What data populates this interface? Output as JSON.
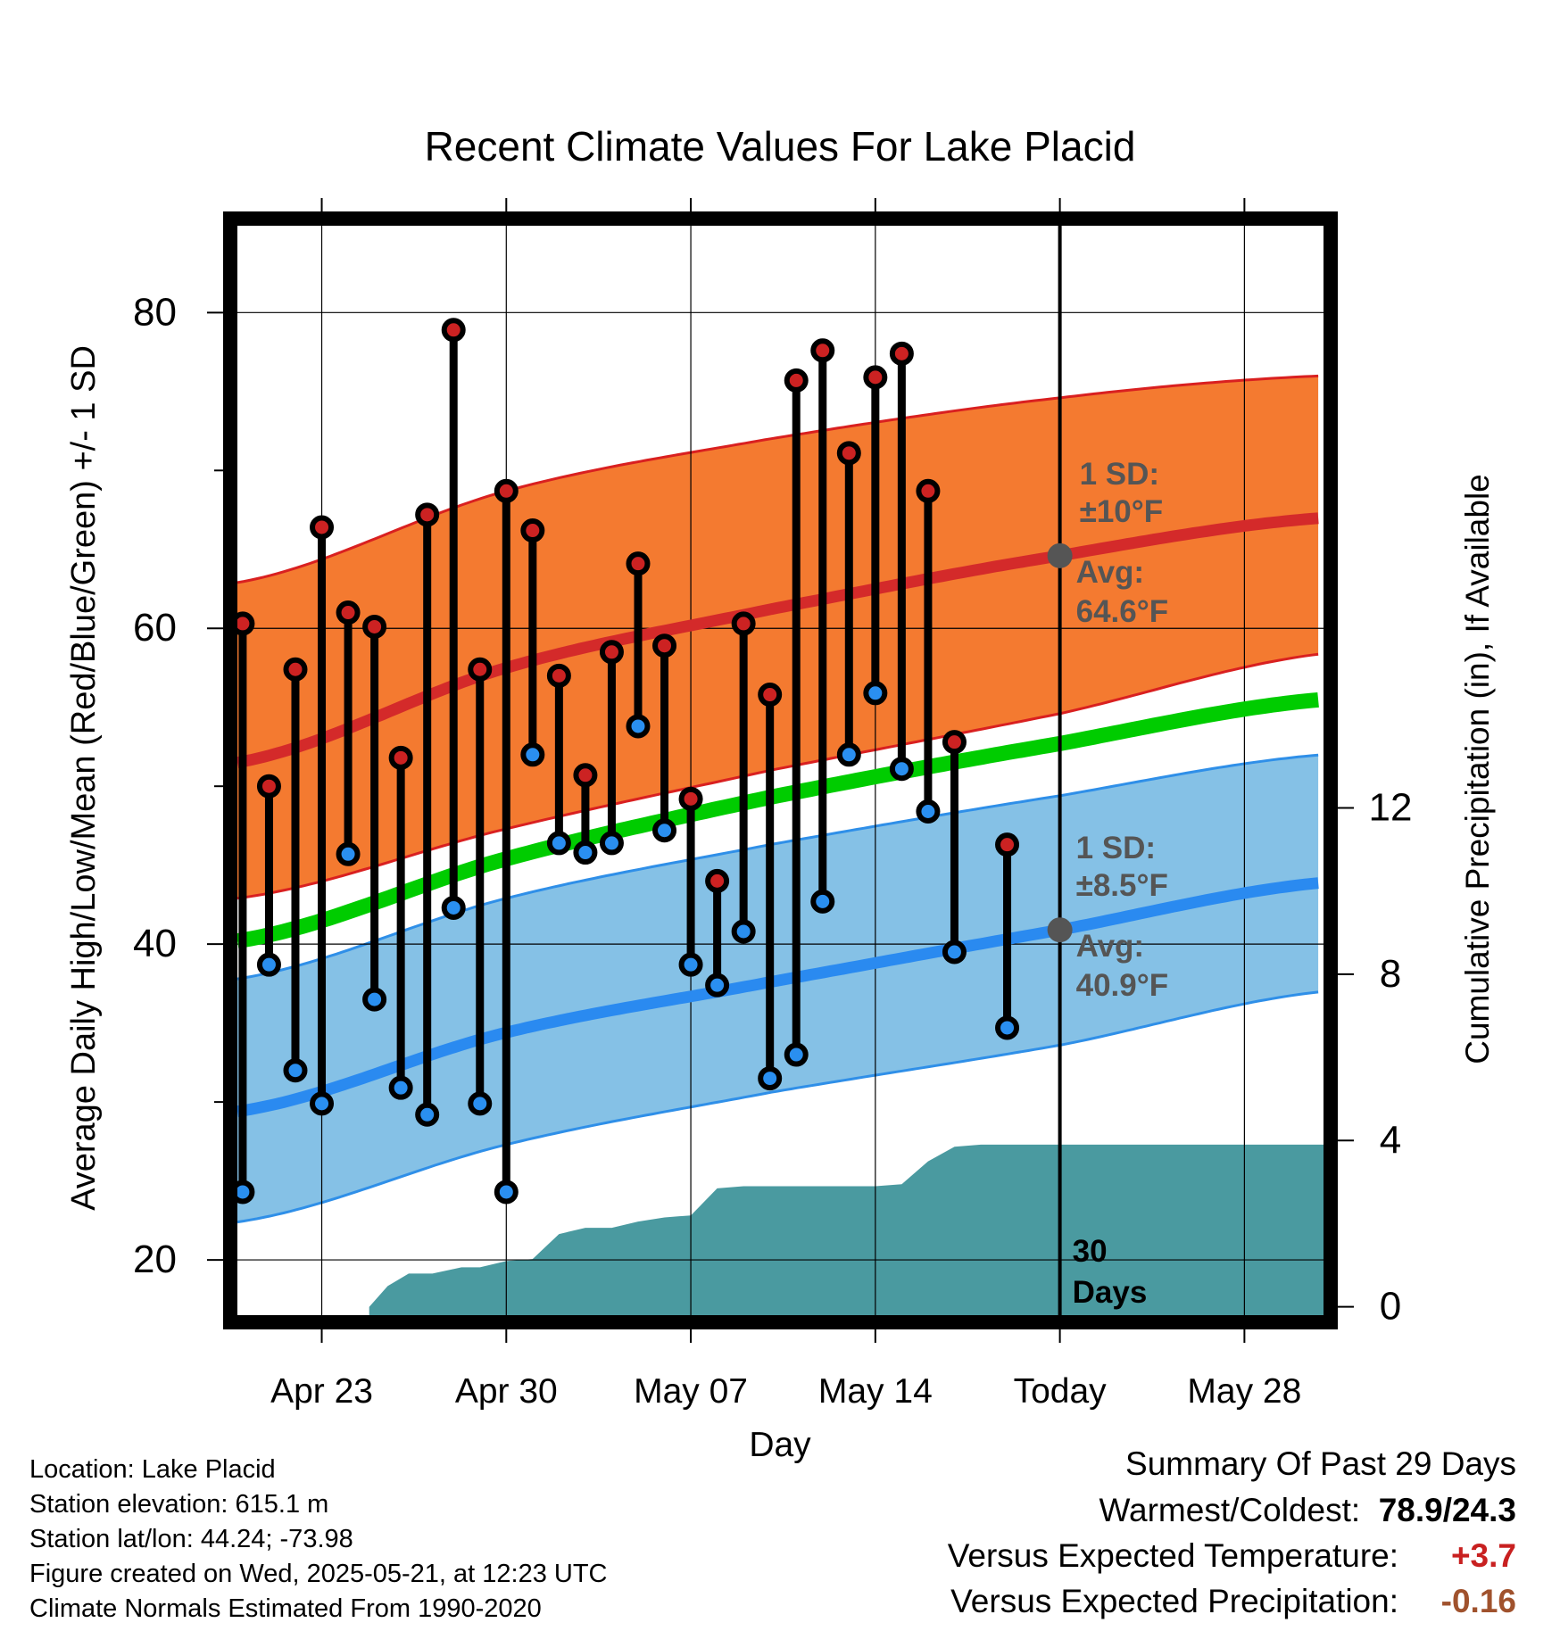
{
  "chart_data": {
    "type": "line",
    "title": "Recent Climate Values For Lake Placid",
    "xlabel": "Day",
    "ylabel": "Average Daily High/Low/Mean (Red/Blue/Green) +/- 1 SD",
    "y2label": "Cumulative Precipitation (in), If Available",
    "ylim": [
      16.5,
      85.5
    ],
    "y2lim": [
      -0.2,
      26
    ],
    "y_ticks": [
      "20",
      "40",
      "60",
      "80"
    ],
    "y2_ticks": [
      "0",
      "4",
      "8",
      "12"
    ],
    "x_ticks": [
      {
        "day": 23,
        "label": "Apr 23"
      },
      {
        "day": 30,
        "label": "Apr 30"
      },
      {
        "day": 37,
        "label": "May 07"
      },
      {
        "day": 44,
        "label": "May 14"
      },
      {
        "day": 51,
        "label": "Today"
      },
      {
        "day": 58,
        "label": "May 28"
      }
    ],
    "xlim": [
      19.8,
      61.0
    ],
    "grid": true,
    "today_day": 51,
    "normals": {
      "days": [
        19.8,
        30,
        40,
        51,
        61
      ],
      "high_mean": [
        51.5,
        57.5,
        61.2,
        64.6,
        67.0
      ],
      "high_upper": [
        62.9,
        68.7,
        72.0,
        74.6,
        76.0
      ],
      "high_lower": [
        42.9,
        47.3,
        51.0,
        54.6,
        58.4
      ],
      "daily_mean": [
        40.2,
        45.4,
        49.3,
        52.7,
        55.5
      ],
      "low_mean": [
        29.4,
        34.4,
        37.6,
        40.9,
        43.9
      ],
      "low_upper": [
        37.8,
        42.9,
        46.3,
        49.4,
        52.0
      ],
      "low_lower": [
        22.4,
        27.3,
        30.6,
        33.6,
        37.0
      ]
    },
    "observations": [
      {
        "day": 20,
        "high": 60.3,
        "low": 24.3
      },
      {
        "day": 21,
        "high": 50.0,
        "low": 38.7
      },
      {
        "day": 22,
        "high": 57.4,
        "low": 32.0
      },
      {
        "day": 23,
        "high": 66.4,
        "low": 29.9
      },
      {
        "day": 24,
        "high": 61.0,
        "low": 45.7
      },
      {
        "day": 25,
        "high": 60.1,
        "low": 36.5
      },
      {
        "day": 26,
        "high": 51.8,
        "low": 30.9
      },
      {
        "day": 27,
        "high": 67.2,
        "low": 29.2
      },
      {
        "day": 28,
        "high": 78.9,
        "low": 42.3
      },
      {
        "day": 29,
        "high": 57.4,
        "low": 29.9
      },
      {
        "day": 30,
        "high": 68.7,
        "low": 24.3
      },
      {
        "day": 31,
        "high": 66.2,
        "low": 52.0
      },
      {
        "day": 32,
        "high": 57.0,
        "low": 46.4
      },
      {
        "day": 33,
        "high": 50.7,
        "low": 45.8
      },
      {
        "day": 34,
        "high": 58.5,
        "low": 46.4
      },
      {
        "day": 35,
        "high": 64.1,
        "low": 53.8
      },
      {
        "day": 36,
        "high": 58.9,
        "low": 47.2
      },
      {
        "day": 37,
        "high": 49.2,
        "low": 38.7
      },
      {
        "day": 38,
        "high": 44.0,
        "low": 37.4
      },
      {
        "day": 39,
        "high": 60.3,
        "low": 40.8
      },
      {
        "day": 40,
        "high": 55.8,
        "low": 31.5
      },
      {
        "day": 41,
        "high": 75.7,
        "low": 33.0
      },
      {
        "day": 42,
        "high": 77.6,
        "low": 42.7
      },
      {
        "day": 43,
        "high": 71.1,
        "low": 52.0
      },
      {
        "day": 44,
        "high": 75.9,
        "low": 55.9
      },
      {
        "day": 45,
        "high": 77.4,
        "low": 51.1
      },
      {
        "day": 46,
        "high": 68.7,
        "low": 48.4
      },
      {
        "day": 47,
        "high": 52.8,
        "low": 39.5
      },
      {
        "day": 49,
        "high": 46.3,
        "low": 34.7
      }
    ],
    "precipitation_cumulative": {
      "days": [
        24.8,
        25.5,
        26.3,
        27.2,
        28.3,
        29.0,
        30.0,
        31.0,
        32.0,
        33.0,
        34.0,
        35.0,
        36.0,
        37.0,
        38.0,
        39.0,
        40.0,
        41.0,
        42.0,
        43.0,
        44.0,
        45.0,
        46.0,
        47.0,
        48.0,
        51.0,
        61.0
      ],
      "values": [
        0.0,
        0.5,
        0.8,
        0.8,
        0.95,
        0.95,
        1.1,
        1.15,
        1.75,
        1.9,
        1.9,
        2.05,
        2.15,
        2.2,
        2.85,
        2.9,
        2.9,
        2.9,
        2.9,
        2.9,
        2.9,
        2.95,
        3.5,
        3.85,
        3.9,
        3.9,
        3.9
      ]
    },
    "annotations": {
      "high_sd_label": "1 SD:",
      "high_sd_value": "±10°F",
      "high_avg_label": "Avg:",
      "high_avg_value": "64.6°F",
      "high_avg": 64.6,
      "low_sd_label": "1 SD:",
      "low_sd_value": "±8.5°F",
      "low_avg_label": "Avg:",
      "low_avg_value": "40.9°F",
      "low_avg": 40.9,
      "period_label": "30",
      "period_label2": "Days"
    },
    "colors": {
      "high_band": "#f47a30",
      "high_band_edge": "#d92020",
      "high_mean": "#d42a2a",
      "mean_line": "#00cc00",
      "low_band": "#85c1e6",
      "low_band_edge": "#2f8fe8",
      "low_mean": "#2a8af0",
      "high_marker": "#cc2222",
      "low_marker": "#2a8ff0",
      "precip": "#4a9aa0",
      "annotation": "#555555"
    }
  },
  "metadata_text": {
    "location": "Location: Lake Placid",
    "elevation": "Station elevation: 615.1 m",
    "latlon": "Station lat/lon: 44.24; -73.98",
    "created": "Figure created on Wed, 2025-05-21, at 12:23 UTC",
    "normals": "Climate Normals Estimated From 1990-2020"
  },
  "summary": {
    "title": "Summary Of Past 29 Days",
    "warm_cold_label": "Warmest/Coldest:",
    "warm_cold_value": "78.9/24.3",
    "temp_label": "Versus Expected Temperature:",
    "temp_value": "+3.7",
    "temp_color": "#c82020",
    "precip_label": "Versus Expected Precipitation:",
    "precip_value": "-0.16",
    "precip_color": "#a0522d"
  }
}
